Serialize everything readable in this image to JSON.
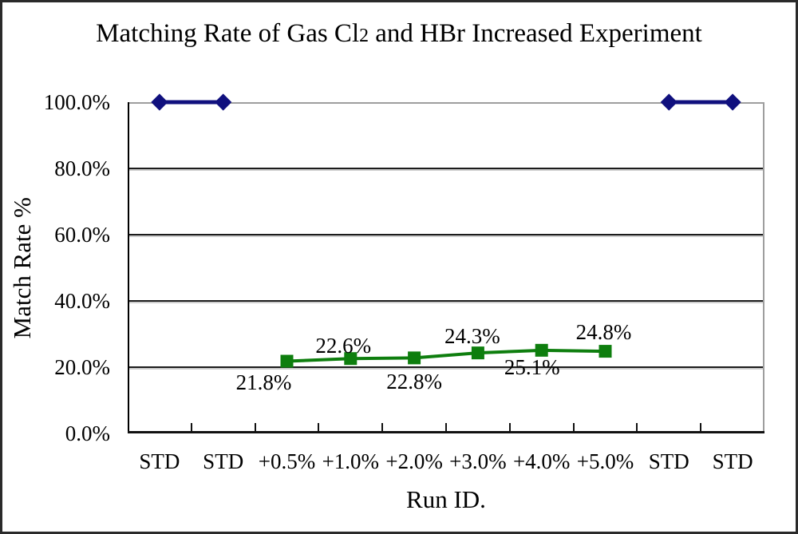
{
  "title": {
    "prefix": "Matching Rate of Gas Cl",
    "subscript": "2",
    "suffix": " and HBr Increased Experiment"
  },
  "axes": {
    "y_title": "Match Rate %",
    "x_title": "Run ID."
  },
  "colors": {
    "std_series": "#10107E",
    "gas_series": "#0E7E0E",
    "gridline": "#1c1c1c",
    "plot_border_gray": "#9e9e9e",
    "axis_black": "#111111"
  },
  "chart_data": {
    "type": "line",
    "title": "Matching Rate of Gas Cl2 and HBr Increased Experiment",
    "xlabel": "Run ID.",
    "ylabel": "Match Rate %",
    "ylim": [
      0,
      100
    ],
    "grid": "horizontal-black",
    "legend": "none",
    "categories": [
      "STD",
      "STD",
      "+0.5%",
      "+1.0%",
      "+2.0%",
      "+3.0%",
      "+4.0%",
      "+5.0%",
      "STD",
      "STD"
    ],
    "y_ticks": [
      {
        "value": 0,
        "label": "0.0%"
      },
      {
        "value": 20,
        "label": "20.0%"
      },
      {
        "value": 40,
        "label": "40.0%"
      },
      {
        "value": 60,
        "label": "60.0%"
      },
      {
        "value": 80,
        "label": "80.0%"
      },
      {
        "value": 100,
        "label": "100.0%"
      }
    ],
    "series": [
      {
        "color": "#10107E",
        "marker": "diamond",
        "marker_size": 15,
        "line_width": 5,
        "points": [
          {
            "x_index": 0,
            "value": 100.0
          },
          {
            "x_index": 1,
            "value": 100.0
          },
          {
            "x_index": 8,
            "value": 100.0
          },
          {
            "x_index": 9,
            "value": 100.0
          }
        ]
      },
      {
        "color": "#0E7E0E",
        "marker": "square",
        "marker_size": 16,
        "line_width": 4,
        "points": [
          {
            "x_index": 2,
            "value": 21.8,
            "label": "21.8%",
            "label_dx": -29,
            "label_dy": 13
          },
          {
            "x_index": 3,
            "value": 22.6,
            "label": "22.6%",
            "label_dx": -9,
            "label_dy": -29
          },
          {
            "x_index": 4,
            "value": 22.8,
            "label": "22.8%",
            "label_dx": 0,
            "label_dy": 17
          },
          {
            "x_index": 5,
            "value": 24.3,
            "label": "24.3%",
            "label_dx": -7,
            "label_dy": -34
          },
          {
            "x_index": 6,
            "value": 25.1,
            "label": "25.1%",
            "label_dx": -12,
            "label_dy": 8
          },
          {
            "x_index": 7,
            "value": 24.8,
            "label": "24.8%",
            "label_dx": -2,
            "label_dy": -37
          }
        ]
      }
    ]
  }
}
